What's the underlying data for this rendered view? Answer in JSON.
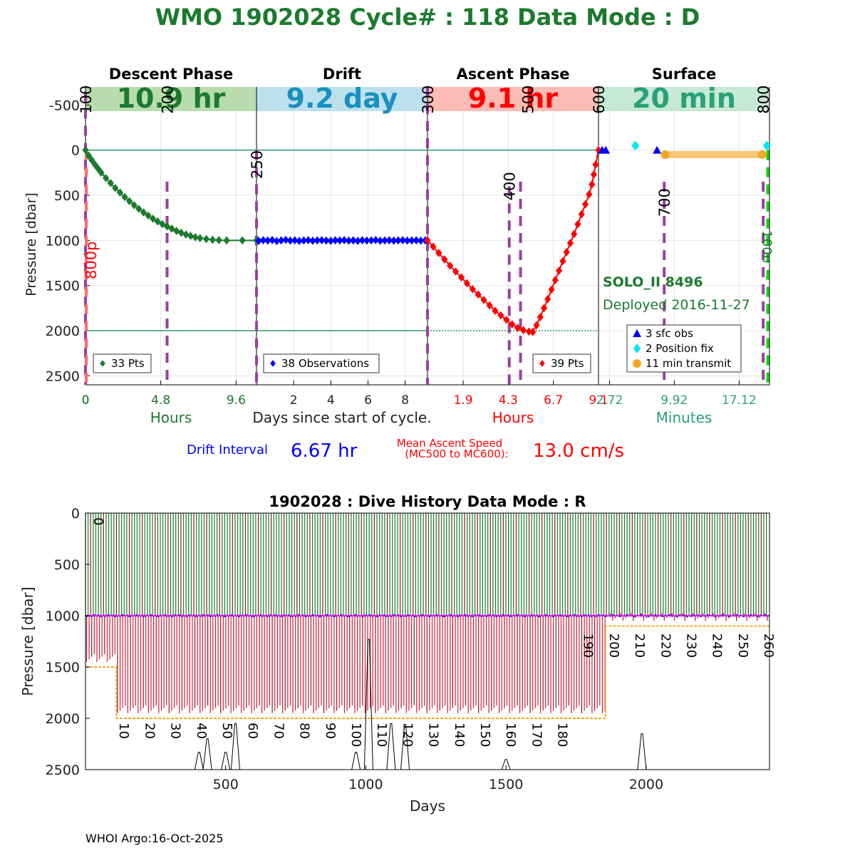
{
  "page": {
    "title": "WMO 1902028   Cycle# : 118   Data Mode : D",
    "footer": "WHOI Argo:16-Oct-2025"
  },
  "colors": {
    "title": "#1b7a2e",
    "descent": "#1b7a2e",
    "drift": "#0000ff",
    "ascent": "#ff0000",
    "surface": "#2aa07a",
    "marker_line": "#9b3fa0",
    "descent_band": "#b9dcae",
    "drift_band": "#bde1ec",
    "ascent_band": "#fbbcb6",
    "surface_band": "#c6e8d6",
    "transmit": "#f5a623",
    "pos_fix": "#00e5ff",
    "sfc_obs": "#0000ff",
    "green_dash": "#00dd00"
  },
  "info": {
    "float_label": "SOLO_II 8496",
    "deployed": "Deployed 2016-11-27",
    "drift_interval_label": "Drift Interval",
    "drift_interval_value": "6.67 hr",
    "ascent_speed_label_1": "Mean Ascent Speed",
    "ascent_speed_label_2": "(MC500 to MC600):",
    "ascent_speed_value": "13.0 cm/s"
  },
  "chart_data": [
    {
      "type": "line",
      "ylabel": "Pressure [dbar]",
      "xlabel": "Days since start of cycle.",
      "ylim": [
        2600,
        -700
      ],
      "yticks": [
        -500,
        0,
        500,
        1000,
        1500,
        2000,
        2500
      ],
      "grid": true,
      "phases": [
        {
          "name": "Descent Phase",
          "duration": "10.9 hr",
          "unit": "Hours",
          "ticks": [
            "0",
            "4.8",
            "9.6"
          ],
          "tick_values": [
            0,
            4.8,
            9.6
          ],
          "range": [
            0,
            10.9
          ],
          "legend": "33 Pts",
          "profile": [
            [
              0,
              0
            ],
            [
              0.2,
              60
            ],
            [
              0.4,
              110
            ],
            [
              0.6,
              160
            ],
            [
              0.8,
              205
            ],
            [
              1.0,
              250
            ],
            [
              1.3,
              310
            ],
            [
              1.6,
              365
            ],
            [
              1.9,
              420
            ],
            [
              2.2,
              470
            ],
            [
              2.5,
              520
            ],
            [
              2.8,
              565
            ],
            [
              3.1,
              610
            ],
            [
              3.4,
              650
            ],
            [
              3.7,
              690
            ],
            [
              4.0,
              725
            ],
            [
              4.3,
              760
            ],
            [
              4.6,
              790
            ],
            [
              4.9,
              820
            ],
            [
              5.2,
              845
            ],
            [
              5.5,
              870
            ],
            [
              5.8,
              895
            ],
            [
              6.1,
              915
            ],
            [
              6.4,
              935
            ],
            [
              6.7,
              950
            ],
            [
              7.0,
              965
            ],
            [
              7.3,
              975
            ],
            [
              7.7,
              985
            ],
            [
              8.1,
              993
            ],
            [
              8.5,
              997
            ],
            [
              9.0,
              1000
            ],
            [
              10.0,
              1000
            ],
            [
              10.9,
              1000
            ]
          ],
          "markers": [
            {
              "label": "100",
              "x": 0
            },
            {
              "label": "200",
              "x": 5.2
            },
            {
              "label": "800p",
              "x": 0.05
            }
          ]
        },
        {
          "name": "Drift",
          "duration": "9.2 day",
          "unit": "",
          "ticks": [
            "2",
            "4",
            "6",
            "8"
          ],
          "tick_values": [
            2,
            4,
            6,
            8
          ],
          "range": [
            0,
            9.2
          ],
          "legend": "38 Observations",
          "values": [
            1005,
            998,
            1002,
            996,
            1008,
            1000,
            994,
            1003,
            999,
            1006,
            1001,
            997,
            1004,
            1000,
            998,
            1002,
            1005,
            999,
            1001,
            997,
            1003,
            1000,
            1006,
            998,
            1002,
            1000,
            996,
            1004,
            1001,
            999,
            1003,
            1000,
            998,
            1002,
            1001,
            999,
            1003,
            1000
          ],
          "markers": [
            {
              "label": "250",
              "x": 0
            }
          ]
        },
        {
          "name": "Ascent Phase",
          "duration": "9.1 hr",
          "unit": "Hours",
          "ticks": [
            "1.9",
            "4.3",
            "6.7",
            "9.1"
          ],
          "tick_values": [
            1.9,
            4.3,
            6.7,
            9.1
          ],
          "range": [
            0,
            9.1
          ],
          "legend": "39 Pts",
          "profile": [
            [
              0,
              1000
            ],
            [
              0.3,
              1070
            ],
            [
              0.6,
              1140
            ],
            [
              0.9,
              1210
            ],
            [
              1.2,
              1280
            ],
            [
              1.5,
              1345
            ],
            [
              1.8,
              1410
            ],
            [
              2.1,
              1475
            ],
            [
              2.4,
              1540
            ],
            [
              2.7,
              1600
            ],
            [
              3.0,
              1660
            ],
            [
              3.3,
              1720
            ],
            [
              3.6,
              1780
            ],
            [
              3.9,
              1830
            ],
            [
              4.2,
              1880
            ],
            [
              4.5,
              1930
            ],
            [
              4.8,
              1970
            ],
            [
              5.1,
              1995
            ],
            [
              5.4,
              2010
            ],
            [
              5.6,
              2015
            ],
            [
              5.8,
              1940
            ],
            [
              6.0,
              1850
            ],
            [
              6.2,
              1750
            ],
            [
              6.4,
              1650
            ],
            [
              6.6,
              1545
            ],
            [
              6.8,
              1440
            ],
            [
              7.0,
              1335
            ],
            [
              7.2,
              1230
            ],
            [
              7.4,
              1130
            ],
            [
              7.6,
              1030
            ],
            [
              7.8,
              930
            ],
            [
              8.0,
              820
            ],
            [
              8.2,
              710
            ],
            [
              8.4,
              600
            ],
            [
              8.6,
              490
            ],
            [
              8.75,
              380
            ],
            [
              8.85,
              270
            ],
            [
              8.95,
              160
            ],
            [
              9.1,
              0
            ]
          ],
          "markers": [
            {
              "label": "300",
              "x": 0
            },
            {
              "label": "400",
              "x": 4.35
            },
            {
              "label": "500",
              "x": 4.95
            },
            {
              "label": "600",
              "x": 9.1
            }
          ]
        },
        {
          "name": "Surface",
          "duration": "20 min",
          "unit": "Minutes",
          "ticks": [
            "2.72",
            "9.92",
            "17.12"
          ],
          "tick_values": [
            2.72,
            9.92,
            17.12
          ],
          "range": [
            1.5,
            20.5
          ],
          "markers": [
            {
              "label": "700",
              "x": 8.8
            },
            {
              "label": "800",
              "x": 19.8
            },
            {
              "label": "100n",
              "x": 20.3
            }
          ],
          "sfc_obs": [
            [
              1.9,
              0
            ],
            [
              2.3,
              0
            ],
            [
              8.0,
              0
            ]
          ],
          "pos_fix": [
            [
              5.6,
              -50
            ],
            [
              20.2,
              -50
            ]
          ],
          "transmit": [
            [
              8.9,
              50
            ],
            [
              19.7,
              50
            ]
          ]
        }
      ],
      "surface_legend": [
        "3 sfc obs",
        "2 Position fix",
        "11 min transmit"
      ]
    },
    {
      "type": "line",
      "title": "1902028 : Dive History      Data Mode : R",
      "xlabel": "Days",
      "ylabel": "Pressure [dbar]",
      "xlim": [
        0,
        2440
      ],
      "ylim": [
        2500,
        0
      ],
      "xticks": [
        500,
        1000,
        1500,
        2000
      ],
      "yticks": [
        0,
        500,
        1000,
        1500,
        2000,
        2500
      ],
      "cycle_interval_days": 9.2,
      "cycle_count": 265,
      "cycle_labels": [
        {
          "label": "0",
          "x": 0,
          "y": 0
        },
        {
          "label": "10",
          "x": 92,
          "y": 2000
        },
        {
          "label": "20",
          "x": 184,
          "y": 2000
        },
        {
          "label": "30",
          "x": 276,
          "y": 2000
        },
        {
          "label": "40",
          "x": 368,
          "y": 2000
        },
        {
          "label": "50",
          "x": 460,
          "y": 2000
        },
        {
          "label": "60",
          "x": 552,
          "y": 2000
        },
        {
          "label": "70",
          "x": 644,
          "y": 2000
        },
        {
          "label": "80",
          "x": 736,
          "y": 2000
        },
        {
          "label": "90",
          "x": 828,
          "y": 2000
        },
        {
          "label": "100",
          "x": 920,
          "y": 2000
        },
        {
          "label": "110",
          "x": 1012,
          "y": 2000
        },
        {
          "label": "120",
          "x": 1104,
          "y": 2000
        },
        {
          "label": "130",
          "x": 1196,
          "y": 2000
        },
        {
          "label": "140",
          "x": 1288,
          "y": 2000
        },
        {
          "label": "150",
          "x": 1380,
          "y": 2000
        },
        {
          "label": "160",
          "x": 1472,
          "y": 2000
        },
        {
          "label": "170",
          "x": 1564,
          "y": 2000
        },
        {
          "label": "180",
          "x": 1656,
          "y": 2000
        },
        {
          "label": "190",
          "x": 1748,
          "y": 1130
        },
        {
          "label": "200",
          "x": 1840,
          "y": 1130
        },
        {
          "label": "210",
          "x": 1932,
          "y": 1130
        },
        {
          "label": "220",
          "x": 2024,
          "y": 1130
        },
        {
          "label": "230",
          "x": 2116,
          "y": 1130
        },
        {
          "label": "240",
          "x": 2208,
          "y": 1130
        },
        {
          "label": "250",
          "x": 2300,
          "y": 1130
        },
        {
          "label": "260",
          "x": 2392,
          "y": 1130
        }
      ],
      "max_pressure_steps": [
        [
          0,
          1500
        ],
        [
          110,
          1500
        ],
        [
          110,
          2000
        ],
        [
          1855,
          2000
        ],
        [
          1855,
          1100
        ],
        [
          2440,
          1100
        ]
      ],
      "drift_pressure": 1000,
      "bathymetry_spikes": [
        {
          "x": 405,
          "depth": 2330
        },
        {
          "x": 435,
          "depth": 2200
        },
        {
          "x": 500,
          "depth": 2330
        },
        {
          "x": 535,
          "depth": 2050
        },
        {
          "x": 965,
          "depth": 2330
        },
        {
          "x": 1010,
          "depth": 1230
        },
        {
          "x": 1090,
          "depth": 2050
        },
        {
          "x": 1140,
          "depth": 2060
        },
        {
          "x": 1500,
          "depth": 2400
        },
        {
          "x": 1985,
          "depth": 2150
        }
      ]
    }
  ]
}
